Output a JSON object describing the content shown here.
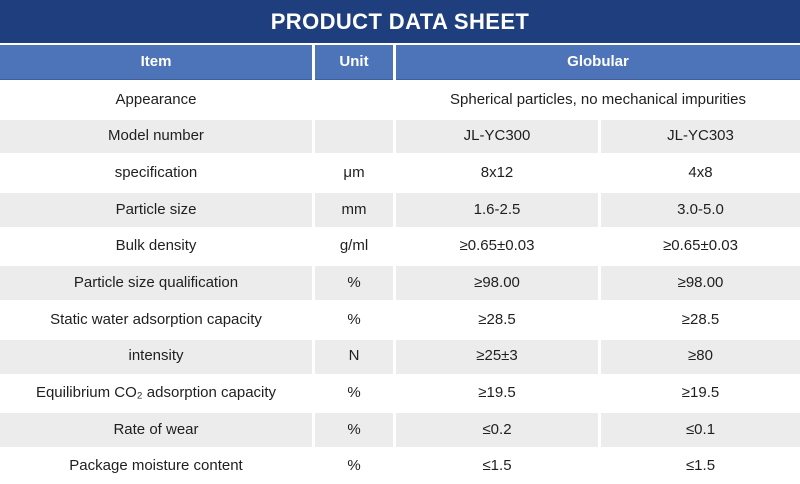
{
  "title": "PRODUCT DATA SHEET",
  "colors": {
    "title_bar": "#1E3E7E",
    "header_blue": "#4D74B9",
    "header_bottom_edge": "#3D5F9E",
    "alt_row_gray": "#ECECEC",
    "text": "#1F1F1F"
  },
  "table": {
    "headers": {
      "item": "Item",
      "unit": "Unit",
      "globular": "Globular"
    },
    "rows": [
      {
        "item": "Appearance",
        "unit": "",
        "span": "Spherical particles, no mechanical impurities"
      },
      {
        "item": "Model number",
        "unit": "",
        "v1": "JL-YC300",
        "v2": "JL-YC303"
      },
      {
        "item": "specification",
        "unit": "μm",
        "v1": "8x12",
        "v2": "4x8"
      },
      {
        "item": "Particle size",
        "unit": "mm",
        "v1": "1.6-2.5",
        "v2": "3.0-5.0"
      },
      {
        "item": "Bulk density",
        "unit": "g/ml",
        "v1": "≥0.65±0.03",
        "v2": "≥0.65±0.03"
      },
      {
        "item": "Particle size qualification",
        "unit": "%",
        "v1": "≥98.00",
        "v2": "≥98.00"
      },
      {
        "item": "Static water adsorption capacity",
        "unit": "%",
        "v1": "≥28.5",
        "v2": "≥28.5"
      },
      {
        "item": "intensity",
        "unit": "N",
        "v1": "≥25±3",
        "v2": "≥80"
      },
      {
        "item": "Equilibrium CO₂ adsorption capacity",
        "unit": "%",
        "v1": "≥19.5",
        "v2": "≥19.5"
      },
      {
        "item": "Rate of wear",
        "unit": "%",
        "v1": "≤0.2",
        "v2": "≤0.1"
      },
      {
        "item": "Package moisture content",
        "unit": "%",
        "v1": "≤1.5",
        "v2": "≤1.5"
      }
    ]
  }
}
